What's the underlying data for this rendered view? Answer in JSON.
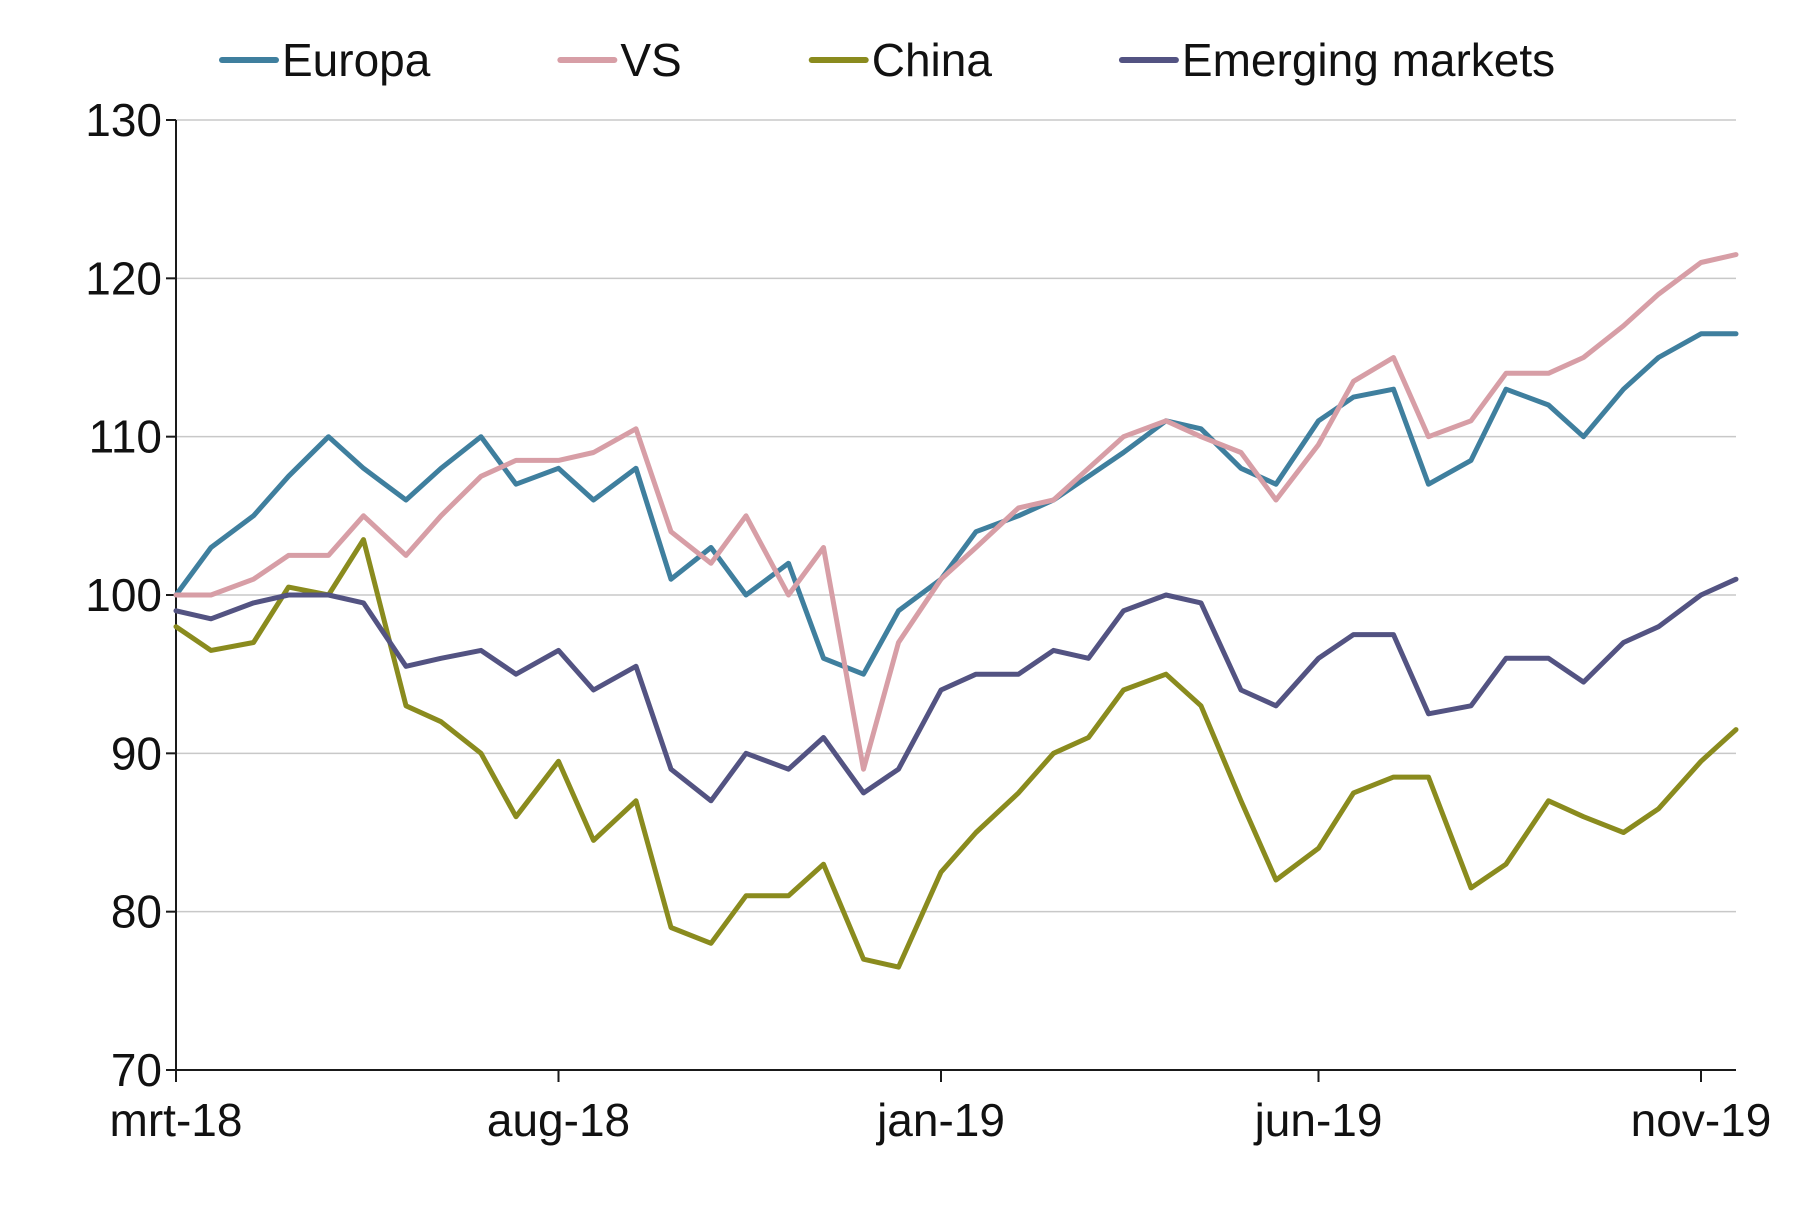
{
  "chart_data": {
    "type": "line",
    "title": "",
    "xlabel": "",
    "ylabel": "",
    "ylim": [
      70,
      130
    ],
    "yticks": [
      70,
      80,
      90,
      100,
      110,
      120,
      130
    ],
    "xlim": [
      "2018-03-01",
      "2019-11-15"
    ],
    "xticks": [
      {
        "date": "2018-03-01",
        "label": "mrt-18"
      },
      {
        "date": "2018-08-01",
        "label": "aug-18"
      },
      {
        "date": "2019-01-01",
        "label": "jan-19"
      },
      {
        "date": "2019-06-01",
        "label": "jun-19"
      },
      {
        "date": "2019-11-01",
        "label": "nov-19"
      }
    ],
    "grid": "horizontal",
    "legend_position": "top",
    "x": [
      "2018-03-01",
      "2018-03-15",
      "2018-04-01",
      "2018-04-15",
      "2018-05-01",
      "2018-05-15",
      "2018-06-01",
      "2018-06-15",
      "2018-07-01",
      "2018-07-15",
      "2018-08-01",
      "2018-08-15",
      "2018-09-01",
      "2018-09-15",
      "2018-10-01",
      "2018-10-15",
      "2018-11-01",
      "2018-11-15",
      "2018-12-01",
      "2018-12-15",
      "2019-01-01",
      "2019-01-15",
      "2019-02-01",
      "2019-02-15",
      "2019-03-01",
      "2019-03-15",
      "2019-04-01",
      "2019-04-15",
      "2019-05-01",
      "2019-05-15",
      "2019-06-01",
      "2019-06-15",
      "2019-07-01",
      "2019-07-15",
      "2019-08-01",
      "2019-08-15",
      "2019-09-01",
      "2019-09-15",
      "2019-10-01",
      "2019-10-15",
      "2019-11-01",
      "2019-11-15"
    ],
    "series": [
      {
        "name": "Europa",
        "color": "#3f7f9e",
        "values": [
          100,
          103,
          105,
          107.5,
          110,
          108,
          106,
          108,
          110,
          107,
          108,
          106,
          108,
          101,
          103,
          100,
          102,
          96,
          95,
          99,
          101,
          104,
          105,
          106,
          107.5,
          109,
          111,
          110.5,
          108,
          107,
          111,
          112.5,
          113,
          107,
          108.5,
          113,
          112,
          110,
          113,
          115,
          116.5,
          116.5
        ]
      },
      {
        "name": "VS",
        "color": "#d79ea6",
        "values": [
          100,
          100,
          101,
          102.5,
          102.5,
          105,
          102.5,
          105,
          107.5,
          108.5,
          108.5,
          109,
          110.5,
          104,
          102,
          105,
          100,
          103,
          89,
          97,
          101,
          103,
          105.5,
          106,
          108,
          110,
          111,
          110,
          109,
          106,
          109.5,
          113.5,
          115,
          110,
          111,
          114,
          114,
          115,
          117,
          119,
          121,
          121.5
        ]
      },
      {
        "name": "China",
        "color": "#8a8b1e",
        "values": [
          98,
          96.5,
          97,
          100.5,
          100,
          103.5,
          93,
          92,
          90,
          86,
          89.5,
          84.5,
          87,
          79,
          78,
          81,
          81,
          83,
          77,
          76.5,
          82.5,
          85,
          87.5,
          90,
          91,
          94,
          95,
          93,
          87,
          82,
          84,
          87.5,
          88.5,
          88.5,
          81.5,
          83,
          87,
          86,
          85,
          86.5,
          89.5,
          91.5
        ]
      },
      {
        "name": "Emerging markets",
        "color": "#535382",
        "values": [
          99,
          98.5,
          99.5,
          100,
          100,
          99.5,
          95.5,
          96,
          96.5,
          95,
          96.5,
          94,
          95.5,
          89,
          87,
          90,
          89,
          91,
          87.5,
          89,
          94,
          95,
          95,
          96.5,
          96,
          99,
          100,
          99.5,
          94,
          93,
          96,
          97.5,
          97.5,
          92.5,
          93,
          96,
          96,
          94.5,
          97,
          98,
          100,
          101
        ]
      }
    ]
  }
}
